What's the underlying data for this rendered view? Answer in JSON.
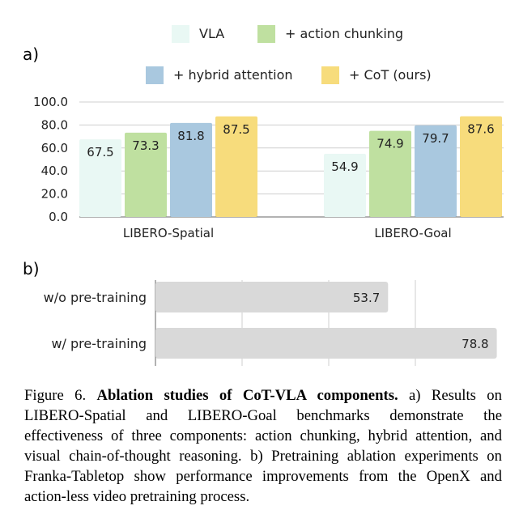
{
  "chart_data": [
    {
      "type": "bar",
      "panel_label": "a)",
      "categories": [
        "LIBERO-Spatial",
        "LIBERO-Goal"
      ],
      "series": [
        {
          "name": "VLA",
          "values": [
            67.5,
            54.9
          ]
        },
        {
          "name": "+ action chunking",
          "values": [
            73.3,
            74.9
          ]
        },
        {
          "name": "+ hybrid attention",
          "values": [
            81.8,
            79.7
          ]
        },
        {
          "name": "+ CoT (ours)",
          "values": [
            87.5,
            87.6
          ]
        }
      ],
      "colors": [
        "#e9f8f4",
        "#bfe0a0",
        "#a9c8df",
        "#f7dc7c"
      ],
      "yticks": [
        "100.0",
        "80.0",
        "60.0",
        "40.0",
        "20.0",
        "0.0"
      ],
      "ylim": [
        0,
        100
      ],
      "grid": true,
      "legend_position": "top"
    },
    {
      "type": "bar",
      "orientation": "horizontal",
      "panel_label": "b)",
      "categories": [
        "w/o pre-training",
        "w/ pre-training"
      ],
      "values": [
        53.7,
        78.8
      ],
      "color": "#d9d9d9",
      "xlim": [
        0,
        80
      ],
      "grid": true
    }
  ],
  "caption": {
    "prefix": "Figure 6. ",
    "bold": "Ablation studies of CoT-VLA components.",
    "text": " a) Results on LIBERO-Spatial and LIBERO-Goal benchmarks demonstrate the effectiveness of three components: action chunking, hybrid attention, and visual chain-of-thought reasoning. b) Pretraining ablation experiments on Franka-Tabletop show performance improvements from the OpenX and action-less video pretraining process."
  }
}
